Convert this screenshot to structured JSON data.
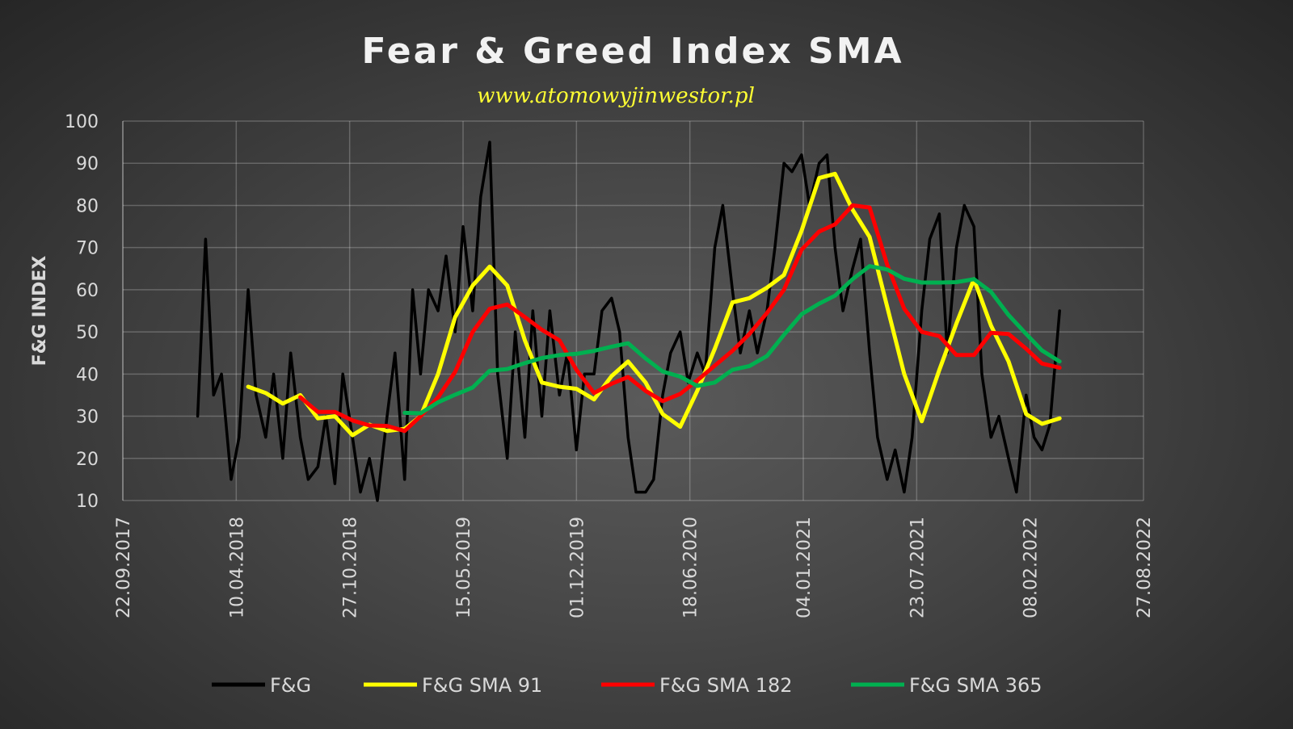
{
  "chart_data": {
    "type": "line",
    "title": "Fear & Greed Index SMA",
    "subtitle": "www.atomowyjinwestor.pl",
    "ylabel": "F&G INDEX",
    "xlabel": "",
    "ylim": [
      10,
      100
    ],
    "yticks": [
      10,
      20,
      30,
      40,
      50,
      60,
      70,
      80,
      90,
      100
    ],
    "xlim": [
      "2017-09-22",
      "2022-08-27"
    ],
    "xticks": [
      {
        "date": "2017-09-22",
        "label": "22.09.2017"
      },
      {
        "date": "2018-04-10",
        "label": "10.04.2018"
      },
      {
        "date": "2018-10-27",
        "label": "27.10.2018"
      },
      {
        "date": "2019-05-15",
        "label": "15.05.2019"
      },
      {
        "date": "2019-12-01",
        "label": "01.12.2019"
      },
      {
        "date": "2020-06-18",
        "label": "18.06.2020"
      },
      {
        "date": "2021-01-04",
        "label": "04.01.2021"
      },
      {
        "date": "2021-07-23",
        "label": "23.07.2021"
      },
      {
        "date": "2022-02-08",
        "label": "08.02.2022"
      },
      {
        "date": "2022-08-27",
        "label": "27.08.2022"
      }
    ],
    "grid": true,
    "legend_position": "bottom",
    "series": [
      {
        "name": "F&G",
        "color": "#000000",
        "points": [
          [
            "2018-02-01",
            30
          ],
          [
            "2018-02-15",
            72
          ],
          [
            "2018-03-01",
            35
          ],
          [
            "2018-03-15",
            40
          ],
          [
            "2018-04-01",
            15
          ],
          [
            "2018-04-15",
            25
          ],
          [
            "2018-05-01",
            60
          ],
          [
            "2018-05-15",
            35
          ],
          [
            "2018-06-01",
            25
          ],
          [
            "2018-06-15",
            40
          ],
          [
            "2018-07-01",
            20
          ],
          [
            "2018-07-15",
            45
          ],
          [
            "2018-08-01",
            25
          ],
          [
            "2018-08-15",
            15
          ],
          [
            "2018-09-01",
            18
          ],
          [
            "2018-09-15",
            30
          ],
          [
            "2018-10-01",
            14
          ],
          [
            "2018-10-15",
            40
          ],
          [
            "2018-11-01",
            25
          ],
          [
            "2018-11-15",
            12
          ],
          [
            "2018-12-01",
            20
          ],
          [
            "2018-12-15",
            10
          ],
          [
            "2019-01-01",
            30
          ],
          [
            "2019-01-15",
            45
          ],
          [
            "2019-02-01",
            15
          ],
          [
            "2019-02-15",
            60
          ],
          [
            "2019-03-01",
            40
          ],
          [
            "2019-03-15",
            60
          ],
          [
            "2019-04-01",
            55
          ],
          [
            "2019-04-15",
            68
          ],
          [
            "2019-05-01",
            50
          ],
          [
            "2019-05-15",
            75
          ],
          [
            "2019-06-01",
            55
          ],
          [
            "2019-06-15",
            82
          ],
          [
            "2019-07-01",
            95
          ],
          [
            "2019-07-15",
            40
          ],
          [
            "2019-08-01",
            20
          ],
          [
            "2019-08-15",
            50
          ],
          [
            "2019-09-01",
            25
          ],
          [
            "2019-09-15",
            55
          ],
          [
            "2019-10-01",
            30
          ],
          [
            "2019-10-15",
            55
          ],
          [
            "2019-11-01",
            35
          ],
          [
            "2019-11-15",
            45
          ],
          [
            "2019-12-01",
            22
          ],
          [
            "2019-12-15",
            40
          ],
          [
            "2020-01-01",
            40
          ],
          [
            "2020-01-15",
            55
          ],
          [
            "2020-02-01",
            58
          ],
          [
            "2020-02-15",
            50
          ],
          [
            "2020-03-01",
            25
          ],
          [
            "2020-03-15",
            12
          ],
          [
            "2020-04-01",
            12
          ],
          [
            "2020-04-15",
            15
          ],
          [
            "2020-05-01",
            35
          ],
          [
            "2020-05-15",
            45
          ],
          [
            "2020-06-01",
            50
          ],
          [
            "2020-06-15",
            38
          ],
          [
            "2020-07-01",
            45
          ],
          [
            "2020-07-15",
            40
          ],
          [
            "2020-08-01",
            70
          ],
          [
            "2020-08-15",
            80
          ],
          [
            "2020-09-01",
            60
          ],
          [
            "2020-09-15",
            45
          ],
          [
            "2020-10-01",
            55
          ],
          [
            "2020-10-15",
            45
          ],
          [
            "2020-11-01",
            55
          ],
          [
            "2020-11-15",
            70
          ],
          [
            "2020-12-01",
            90
          ],
          [
            "2020-12-15",
            88
          ],
          [
            "2021-01-01",
            92
          ],
          [
            "2021-01-15",
            80
          ],
          [
            "2021-02-01",
            90
          ],
          [
            "2021-02-15",
            92
          ],
          [
            "2021-03-01",
            70
          ],
          [
            "2021-03-15",
            55
          ],
          [
            "2021-04-01",
            65
          ],
          [
            "2021-04-15",
            72
          ],
          [
            "2021-05-01",
            45
          ],
          [
            "2021-05-15",
            25
          ],
          [
            "2021-06-01",
            15
          ],
          [
            "2021-06-15",
            22
          ],
          [
            "2021-07-01",
            12
          ],
          [
            "2021-07-15",
            25
          ],
          [
            "2021-08-01",
            55
          ],
          [
            "2021-08-15",
            72
          ],
          [
            "2021-09-01",
            78
          ],
          [
            "2021-09-15",
            45
          ],
          [
            "2021-10-01",
            70
          ],
          [
            "2021-10-15",
            80
          ],
          [
            "2021-11-01",
            75
          ],
          [
            "2021-11-15",
            40
          ],
          [
            "2021-12-01",
            25
          ],
          [
            "2021-12-15",
            30
          ],
          [
            "2022-01-01",
            20
          ],
          [
            "2022-01-15",
            12
          ],
          [
            "2022-02-01",
            35
          ],
          [
            "2022-02-15",
            25
          ],
          [
            "2022-03-01",
            22
          ],
          [
            "2022-03-15",
            28
          ],
          [
            "2022-04-01",
            55
          ]
        ]
      },
      {
        "name": "F&G SMA 91",
        "color": "#ffff00",
        "points": [
          [
            "2018-05-01",
            37
          ],
          [
            "2018-06-01",
            35.5
          ],
          [
            "2018-07-01",
            33
          ],
          [
            "2018-08-01",
            35
          ],
          [
            "2018-09-01",
            29.5
          ],
          [
            "2018-10-01",
            30
          ],
          [
            "2018-11-01",
            25.5
          ],
          [
            "2018-12-01",
            28
          ],
          [
            "2019-01-01",
            26.5
          ],
          [
            "2019-02-01",
            27
          ],
          [
            "2019-03-01",
            30
          ],
          [
            "2019-04-01",
            40
          ],
          [
            "2019-05-01",
            53.5
          ],
          [
            "2019-06-01",
            61
          ],
          [
            "2019-07-01",
            65.5
          ],
          [
            "2019-08-01",
            61
          ],
          [
            "2019-09-01",
            48
          ],
          [
            "2019-10-01",
            38
          ],
          [
            "2019-11-01",
            37
          ],
          [
            "2019-12-01",
            36.5
          ],
          [
            "2020-01-01",
            34
          ],
          [
            "2020-02-01",
            39.5
          ],
          [
            "2020-03-01",
            43
          ],
          [
            "2020-04-01",
            38
          ],
          [
            "2020-05-01",
            30.5
          ],
          [
            "2020-06-01",
            27.5
          ],
          [
            "2020-07-01",
            36
          ],
          [
            "2020-08-01",
            46
          ],
          [
            "2020-09-01",
            57
          ],
          [
            "2020-10-01",
            58
          ],
          [
            "2020-11-01",
            60.5
          ],
          [
            "2020-12-01",
            63.5
          ],
          [
            "2021-01-01",
            74
          ],
          [
            "2021-02-01",
            86.5
          ],
          [
            "2021-03-01",
            87.5
          ],
          [
            "2021-04-01",
            79
          ],
          [
            "2021-05-01",
            72.5
          ],
          [
            "2021-06-01",
            56
          ],
          [
            "2021-07-01",
            40
          ],
          [
            "2021-08-01",
            28.8
          ],
          [
            "2021-09-01",
            41
          ],
          [
            "2021-10-01",
            52
          ],
          [
            "2021-11-01",
            62.5
          ],
          [
            "2021-12-01",
            51.5
          ],
          [
            "2022-01-01",
            43
          ],
          [
            "2022-02-01",
            30.5
          ],
          [
            "2022-03-01",
            28.2
          ],
          [
            "2022-04-01",
            29.5
          ]
        ]
      },
      {
        "name": "F&G SMA 182",
        "color": "#ff0000",
        "points": [
          [
            "2018-08-01",
            34.5
          ],
          [
            "2018-09-01",
            31
          ],
          [
            "2018-10-01",
            31
          ],
          [
            "2018-11-01",
            29
          ],
          [
            "2018-12-01",
            27.8
          ],
          [
            "2019-01-01",
            27.7
          ],
          [
            "2019-02-01",
            26.5
          ],
          [
            "2019-03-01",
            30
          ],
          [
            "2019-04-01",
            34.5
          ],
          [
            "2019-05-01",
            40.5
          ],
          [
            "2019-06-01",
            50
          ],
          [
            "2019-07-01",
            55.5
          ],
          [
            "2019-08-01",
            56.5
          ],
          [
            "2019-09-01",
            53.5
          ],
          [
            "2019-10-01",
            50.5
          ],
          [
            "2019-11-01",
            48
          ],
          [
            "2019-12-01",
            41
          ],
          [
            "2020-01-01",
            35.5
          ],
          [
            "2020-02-01",
            37.7
          ],
          [
            "2020-03-01",
            39.3
          ],
          [
            "2020-04-01",
            36
          ],
          [
            "2020-05-01",
            33.6
          ],
          [
            "2020-06-01",
            35.3
          ],
          [
            "2020-07-01",
            38.5
          ],
          [
            "2020-08-01",
            42
          ],
          [
            "2020-09-01",
            45.5
          ],
          [
            "2020-10-01",
            49.5
          ],
          [
            "2020-11-01",
            54.5
          ],
          [
            "2020-12-01",
            60
          ],
          [
            "2021-01-01",
            69.5
          ],
          [
            "2021-02-01",
            73.8
          ],
          [
            "2021-03-01",
            75.5
          ],
          [
            "2021-04-01",
            80
          ],
          [
            "2021-05-01",
            79.5
          ],
          [
            "2021-06-01",
            66
          ],
          [
            "2021-07-01",
            55.5
          ],
          [
            "2021-08-01",
            50
          ],
          [
            "2021-09-01",
            49
          ],
          [
            "2021-10-01",
            44.5
          ],
          [
            "2021-11-01",
            44.5
          ],
          [
            "2021-12-01",
            49.8
          ],
          [
            "2022-01-01",
            49.5
          ],
          [
            "2022-02-01",
            46
          ],
          [
            "2022-03-01",
            42.5
          ],
          [
            "2022-04-01",
            41.5
          ]
        ]
      },
      {
        "name": "F&G SMA 365",
        "color": "#00b050",
        "points": [
          [
            "2019-02-01",
            30.8
          ],
          [
            "2019-03-01",
            30.7
          ],
          [
            "2019-04-01",
            33.3
          ],
          [
            "2019-05-01",
            35.1
          ],
          [
            "2019-06-01",
            36.8
          ],
          [
            "2019-07-01",
            40.8
          ],
          [
            "2019-08-01",
            41.2
          ],
          [
            "2019-09-01",
            42.6
          ],
          [
            "2019-10-01",
            43.8
          ],
          [
            "2019-11-01",
            44.5
          ],
          [
            "2019-12-01",
            44.8
          ],
          [
            "2020-01-01",
            45.5
          ],
          [
            "2020-02-01",
            46.5
          ],
          [
            "2020-03-01",
            47.3
          ],
          [
            "2020-04-01",
            43.7
          ],
          [
            "2020-05-01",
            40.6
          ],
          [
            "2020-06-01",
            39.4
          ],
          [
            "2020-07-01",
            37.2
          ],
          [
            "2020-08-01",
            38
          ],
          [
            "2020-09-01",
            41
          ],
          [
            "2020-10-01",
            41.9
          ],
          [
            "2020-11-01",
            44.3
          ],
          [
            "2020-12-01",
            49.3
          ],
          [
            "2021-01-01",
            54.2
          ],
          [
            "2021-02-01",
            56.7
          ],
          [
            "2021-03-01",
            58.6
          ],
          [
            "2021-04-01",
            62.5
          ],
          [
            "2021-05-01",
            65.6
          ],
          [
            "2021-06-01",
            64.8
          ],
          [
            "2021-07-01",
            62.6
          ],
          [
            "2021-08-01",
            61.7
          ],
          [
            "2021-09-01",
            61.7
          ],
          [
            "2021-10-01",
            61.8
          ],
          [
            "2021-11-01",
            62.5
          ],
          [
            "2021-12-01",
            59.5
          ],
          [
            "2022-01-01",
            54
          ],
          [
            "2022-02-01",
            49.5
          ],
          [
            "2022-03-01",
            45.6
          ],
          [
            "2022-04-01",
            43
          ]
        ]
      }
    ]
  }
}
